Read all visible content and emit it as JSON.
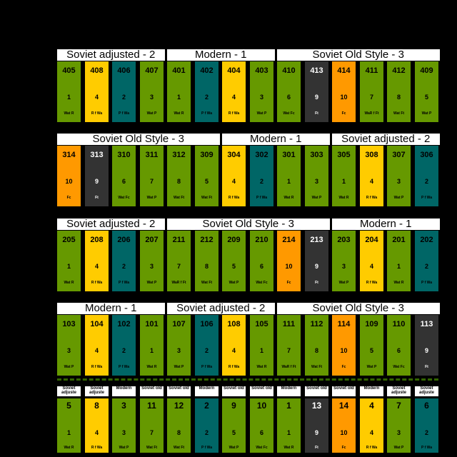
{
  "rows": [
    {
      "groups": [
        {
          "label": "Soviet adjusted - 2",
          "start": 0,
          "span": 4
        },
        {
          "label": "Modern - 1",
          "start": 4,
          "span": 4
        },
        {
          "label": "Soviet Old Style - 3",
          "start": 8,
          "span": 6
        }
      ],
      "cells": [
        {
          "num": "405",
          "idx": "1",
          "code": "Wat R",
          "color": "green"
        },
        {
          "num": "408",
          "idx": "4",
          "code": "R f Wa",
          "color": "yellow"
        },
        {
          "num": "406",
          "idx": "2",
          "code": "P f Wa",
          "color": "teal"
        },
        {
          "num": "407",
          "idx": "3",
          "code": "Wat P",
          "color": "green"
        },
        {
          "num": "401",
          "idx": "1",
          "code": "Wat R",
          "color": "green"
        },
        {
          "num": "402",
          "idx": "2",
          "code": "P f Wa",
          "color": "teal"
        },
        {
          "num": "404",
          "idx": "4",
          "code": "R f Wa",
          "color": "yellow"
        },
        {
          "num": "403",
          "idx": "3",
          "code": "Wat P",
          "color": "green"
        },
        {
          "num": "410",
          "idx": "6",
          "code": "Wat Fc",
          "color": "green"
        },
        {
          "num": "413",
          "idx": "9",
          "code": "Ft",
          "color": "dark"
        },
        {
          "num": "414",
          "idx": "10",
          "code": "Fc",
          "color": "orange"
        },
        {
          "num": "411",
          "idx": "7",
          "code": "WaR f Ft",
          "color": "green"
        },
        {
          "num": "412",
          "idx": "8",
          "code": "Wat Ft",
          "color": "green"
        },
        {
          "num": "409",
          "idx": "5",
          "code": "Wat P",
          "color": "green"
        }
      ]
    },
    {
      "groups": [
        {
          "label": "Soviet Old Style - 3",
          "start": 0,
          "span": 6
        },
        {
          "label": "Modern - 1",
          "start": 6,
          "span": 4
        },
        {
          "label": "Soviet adjusted - 2",
          "start": 10,
          "span": 4
        }
      ],
      "cells": [
        {
          "num": "314",
          "idx": "10",
          "code": "Fc",
          "color": "orange"
        },
        {
          "num": "313",
          "idx": "9",
          "code": "Ft",
          "color": "dark"
        },
        {
          "num": "310",
          "idx": "6",
          "code": "Wat Fc",
          "color": "green"
        },
        {
          "num": "311",
          "idx": "7",
          "code": "Wat P",
          "color": "green"
        },
        {
          "num": "312",
          "idx": "8",
          "code": "Wat Ft",
          "color": "green"
        },
        {
          "num": "309",
          "idx": "5",
          "code": "Wat Ft",
          "color": "green"
        },
        {
          "num": "304",
          "idx": "4",
          "code": "R f Wa",
          "color": "yellow"
        },
        {
          "num": "302",
          "idx": "2",
          "code": "P f Wa",
          "color": "teal"
        },
        {
          "num": "301",
          "idx": "1",
          "code": "Wat R",
          "color": "green"
        },
        {
          "num": "303",
          "idx": "3",
          "code": "Wat P",
          "color": "green"
        },
        {
          "num": "305",
          "idx": "1",
          "code": "Wat R",
          "color": "green"
        },
        {
          "num": "308",
          "idx": "4",
          "code": "R f Wa",
          "color": "yellow"
        },
        {
          "num": "307",
          "idx": "3",
          "code": "Wat P",
          "color": "green"
        },
        {
          "num": "306",
          "idx": "2",
          "code": "P f Wa",
          "color": "teal"
        }
      ]
    },
    {
      "groups": [
        {
          "label": "Soviet adjusted - 2",
          "start": 0,
          "span": 4
        },
        {
          "label": "Soviet Old Style - 3",
          "start": 4,
          "span": 6
        },
        {
          "label": "Modern - 1",
          "start": 10,
          "span": 4
        }
      ],
      "cells": [
        {
          "num": "205",
          "idx": "1",
          "code": "Wat R",
          "color": "green"
        },
        {
          "num": "208",
          "idx": "4",
          "code": "R f Wa",
          "color": "yellow"
        },
        {
          "num": "206",
          "idx": "2",
          "code": "P f Wa",
          "color": "teal"
        },
        {
          "num": "207",
          "idx": "3",
          "code": "Wat P",
          "color": "green"
        },
        {
          "num": "211",
          "idx": "7",
          "code": "WaR f Ft",
          "color": "green"
        },
        {
          "num": "212",
          "idx": "8",
          "code": "Wat Ft",
          "color": "green"
        },
        {
          "num": "209",
          "idx": "5",
          "code": "Wat P",
          "color": "green"
        },
        {
          "num": "210",
          "idx": "6",
          "code": "Wat Fc",
          "color": "green"
        },
        {
          "num": "214",
          "idx": "10",
          "code": "Fc",
          "color": "orange"
        },
        {
          "num": "213",
          "idx": "9",
          "code": "Ft",
          "color": "dark"
        },
        {
          "num": "203",
          "idx": "3",
          "code": "Wat P",
          "color": "green"
        },
        {
          "num": "204",
          "idx": "4",
          "code": "R f Wa",
          "color": "yellow"
        },
        {
          "num": "201",
          "idx": "1",
          "code": "Wat R",
          "color": "green"
        },
        {
          "num": "202",
          "idx": "2",
          "code": "P f Wa",
          "color": "teal"
        }
      ]
    },
    {
      "groups": [
        {
          "label": "Modern - 1",
          "start": 0,
          "span": 4
        },
        {
          "label": "Soviet adjusted - 2",
          "start": 4,
          "span": 4
        },
        {
          "label": "Soviet Old Style - 3",
          "start": 8,
          "span": 6
        }
      ],
      "cells": [
        {
          "num": "103",
          "idx": "3",
          "code": "Wat P",
          "color": "green"
        },
        {
          "num": "104",
          "idx": "4",
          "code": "R f Wa",
          "color": "yellow"
        },
        {
          "num": "102",
          "idx": "2",
          "code": "P f Wa",
          "color": "teal"
        },
        {
          "num": "101",
          "idx": "1",
          "code": "Wat R",
          "color": "green"
        },
        {
          "num": "107",
          "idx": "3",
          "code": "Wat P",
          "color": "green"
        },
        {
          "num": "106",
          "idx": "2",
          "code": "P f Wa",
          "color": "teal"
        },
        {
          "num": "108",
          "idx": "4",
          "code": "R f Wa",
          "color": "yellow"
        },
        {
          "num": "105",
          "idx": "1",
          "code": "Wat R",
          "color": "green"
        },
        {
          "num": "111",
          "idx": "7",
          "code": "WaR f Ft",
          "color": "green"
        },
        {
          "num": "112",
          "idx": "8",
          "code": "Wat Ft",
          "color": "green"
        },
        {
          "num": "114",
          "idx": "10",
          "code": "Fc",
          "color": "orange"
        },
        {
          "num": "109",
          "idx": "5",
          "code": "Wat P",
          "color": "green"
        },
        {
          "num": "110",
          "idx": "6",
          "code": "Wat Fc",
          "color": "green"
        },
        {
          "num": "113",
          "idx": "9",
          "code": "Ft",
          "color": "dark"
        }
      ]
    }
  ],
  "legend": {
    "headers": [
      "Soviet adjuste",
      "Soviet adjuste",
      "Modern",
      "Soviet old",
      "Soviet old",
      "Modern",
      "Soviet old",
      "Soviet old",
      "Modern",
      "Soviet old",
      "Soviet old",
      "Modern",
      "Soviet adjuste",
      "Soviet adjuste"
    ],
    "cells": [
      {
        "num": "5",
        "idx": "1",
        "code": "Wat R",
        "color": "green"
      },
      {
        "num": "8",
        "idx": "4",
        "code": "R f Wa",
        "color": "yellow"
      },
      {
        "num": "3",
        "idx": "3",
        "code": "Wat P",
        "color": "green"
      },
      {
        "num": "11",
        "idx": "7",
        "code": "Wat Ft",
        "color": "green"
      },
      {
        "num": "12",
        "idx": "8",
        "code": "Wat Ft",
        "color": "green"
      },
      {
        "num": "2",
        "idx": "2",
        "code": "P f Wa",
        "color": "teal"
      },
      {
        "num": "9",
        "idx": "5",
        "code": "Wat P",
        "color": "green"
      },
      {
        "num": "10",
        "idx": "6",
        "code": "Wat Fc",
        "color": "green"
      },
      {
        "num": "1",
        "idx": "1",
        "code": "Wat R",
        "color": "green"
      },
      {
        "num": "13",
        "idx": "9",
        "code": "Ft",
        "color": "dark"
      },
      {
        "num": "14",
        "idx": "10",
        "code": "Fc",
        "color": "orange"
      },
      {
        "num": "4",
        "idx": "4",
        "code": "R f Wa",
        "color": "yellow"
      },
      {
        "num": "7",
        "idx": "3",
        "code": "Wat P",
        "color": "green"
      },
      {
        "num": "6",
        "idx": "2",
        "code": "P f Wa",
        "color": "teal"
      }
    ]
  }
}
